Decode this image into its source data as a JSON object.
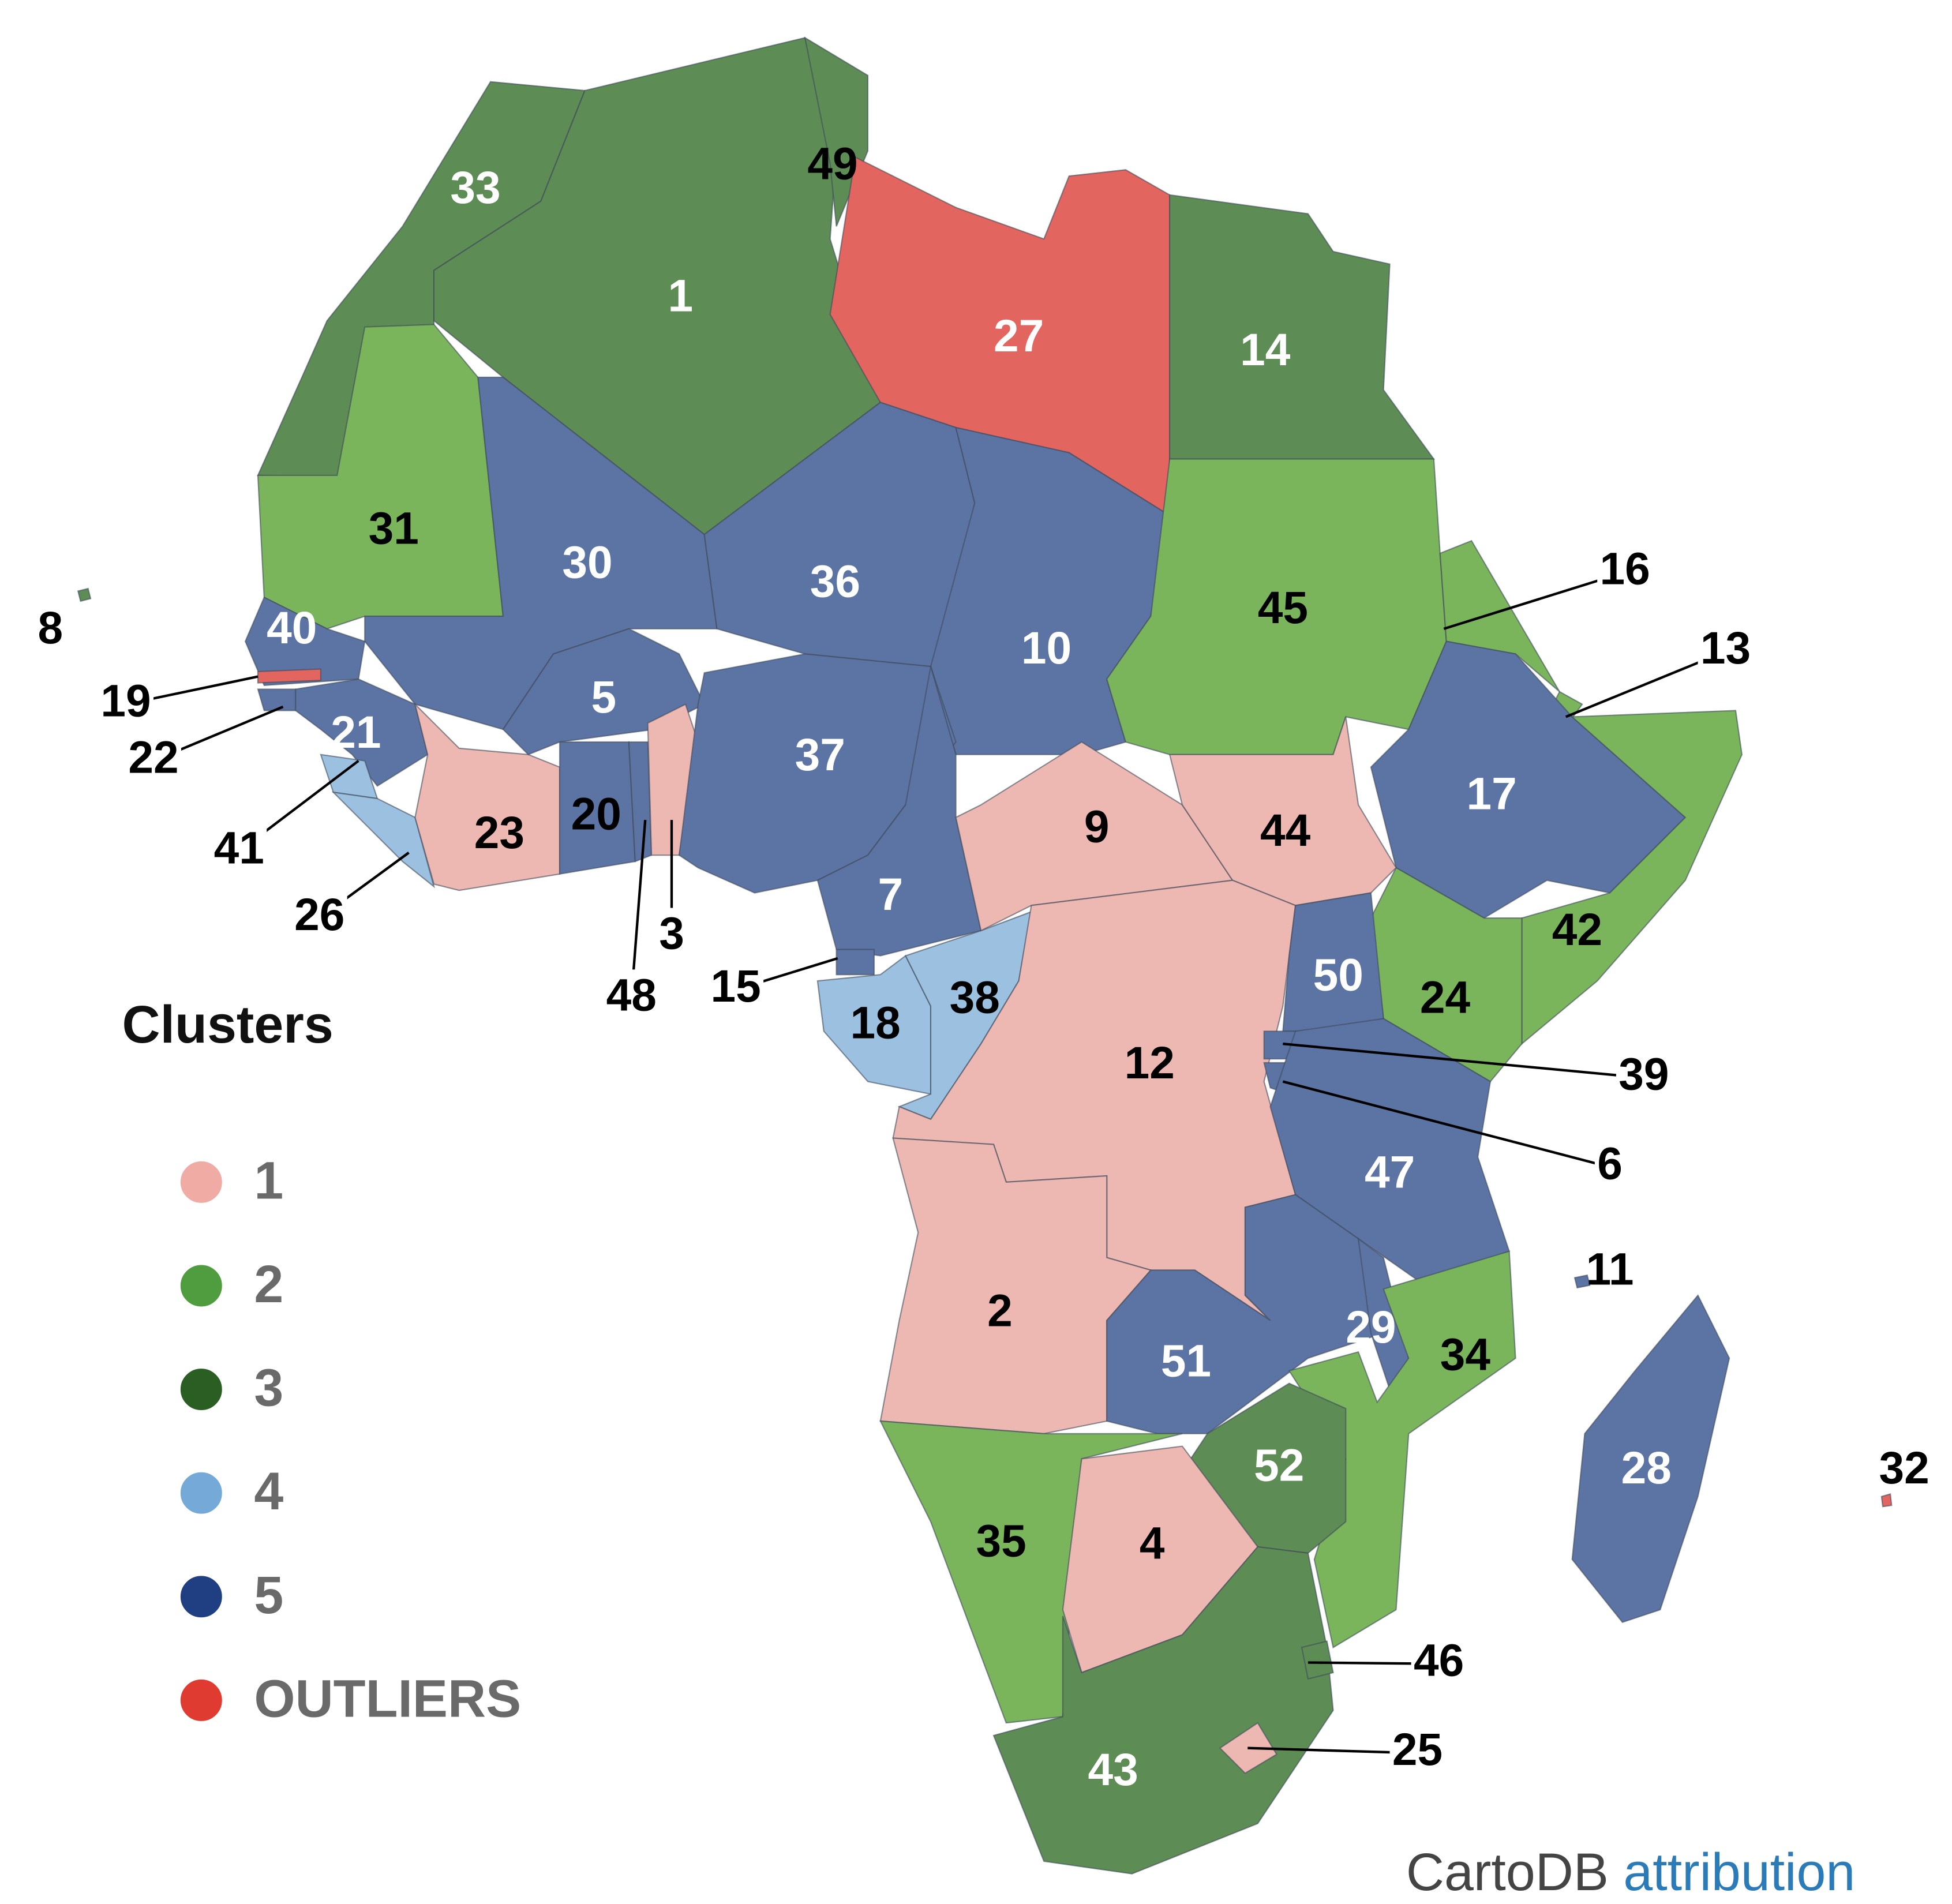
{
  "legend": {
    "title": "Clusters",
    "items": [
      {
        "label": "1",
        "color": "#f0aba4"
      },
      {
        "label": "2",
        "color": "#4f9d3f"
      },
      {
        "label": "3",
        "color": "#2b5e22"
      },
      {
        "label": "4",
        "color": "#74a9d8"
      },
      {
        "label": "5",
        "color": "#1f3f82"
      },
      {
        "label": "OUTLIERS",
        "color": "#e03b31"
      }
    ]
  },
  "regions": [
    {
      "label": "33",
      "color": "#5e8c55"
    },
    {
      "label": "1",
      "color": "#5e8c55"
    },
    {
      "label": "49",
      "color": "#5e8c55"
    },
    {
      "label": "27",
      "color": "#e36560"
    },
    {
      "label": "14",
      "color": "#5e8c55"
    },
    {
      "label": "31",
      "color": "#7ab55c"
    },
    {
      "label": "30",
      "color": "#5c74a4"
    },
    {
      "label": "36",
      "color": "#5c74a4"
    },
    {
      "label": "10",
      "color": "#5c74a4"
    },
    {
      "label": "45",
      "color": "#7ab55c"
    },
    {
      "label": "16",
      "color": "#7ab55c"
    },
    {
      "label": "13",
      "color": "#7ab55c"
    },
    {
      "label": "17",
      "color": "#5c74a4"
    },
    {
      "label": "42",
      "color": "#7ab55c"
    },
    {
      "label": "24",
      "color": "#7ab55c"
    },
    {
      "label": "40",
      "color": "#5c74a4"
    },
    {
      "label": "19",
      "color": "#e36560"
    },
    {
      "label": "22",
      "color": "#5c74a4"
    },
    {
      "label": "21",
      "color": "#5c74a4"
    },
    {
      "label": "41",
      "color": "#9cc0e0"
    },
    {
      "label": "26",
      "color": "#9cc0e0"
    },
    {
      "label": "23",
      "color": "#eeb8b2"
    },
    {
      "label": "5",
      "color": "#5c74a4"
    },
    {
      "label": "20",
      "color": "#5c74a4"
    },
    {
      "label": "48",
      "color": "#5c74a4"
    },
    {
      "label": "3",
      "color": "#eeb8b2"
    },
    {
      "label": "37",
      "color": "#5c74a4"
    },
    {
      "label": "7",
      "color": "#5c74a4"
    },
    {
      "label": "15",
      "color": "#5c74a4"
    },
    {
      "label": "18",
      "color": "#9cc0e0"
    },
    {
      "label": "38",
      "color": "#9cc0e0"
    },
    {
      "label": "9",
      "color": "#eeb8b2"
    },
    {
      "label": "44",
      "color": "#eeb8b2"
    },
    {
      "label": "12",
      "color": "#eeb8b2"
    },
    {
      "label": "50",
      "color": "#5c74a4"
    },
    {
      "label": "39",
      "color": "#5c74a4"
    },
    {
      "label": "6",
      "color": "#5c74a4"
    },
    {
      "label": "47",
      "color": "#5c74a4"
    },
    {
      "label": "2",
      "color": "#eeb8b2"
    },
    {
      "label": "51",
      "color": "#5c74a4"
    },
    {
      "label": "29",
      "color": "#5c74a4"
    },
    {
      "label": "34",
      "color": "#7ab55c"
    },
    {
      "label": "52",
      "color": "#5e8c55"
    },
    {
      "label": "35",
      "color": "#7ab55c"
    },
    {
      "label": "4",
      "color": "#eeb8b2"
    },
    {
      "label": "43",
      "color": "#5e8c55"
    },
    {
      "label": "46",
      "color": "#5e8c55"
    },
    {
      "label": "25",
      "color": "#eeb8b2"
    },
    {
      "label": "28",
      "color": "#5c74a4"
    },
    {
      "label": "8",
      "color": "#5e8c55"
    },
    {
      "label": "11",
      "color": "#5c74a4"
    },
    {
      "label": "32",
      "color": "#e36560"
    }
  ],
  "attribution": {
    "text": "CartoDB",
    "link": "attribution"
  }
}
